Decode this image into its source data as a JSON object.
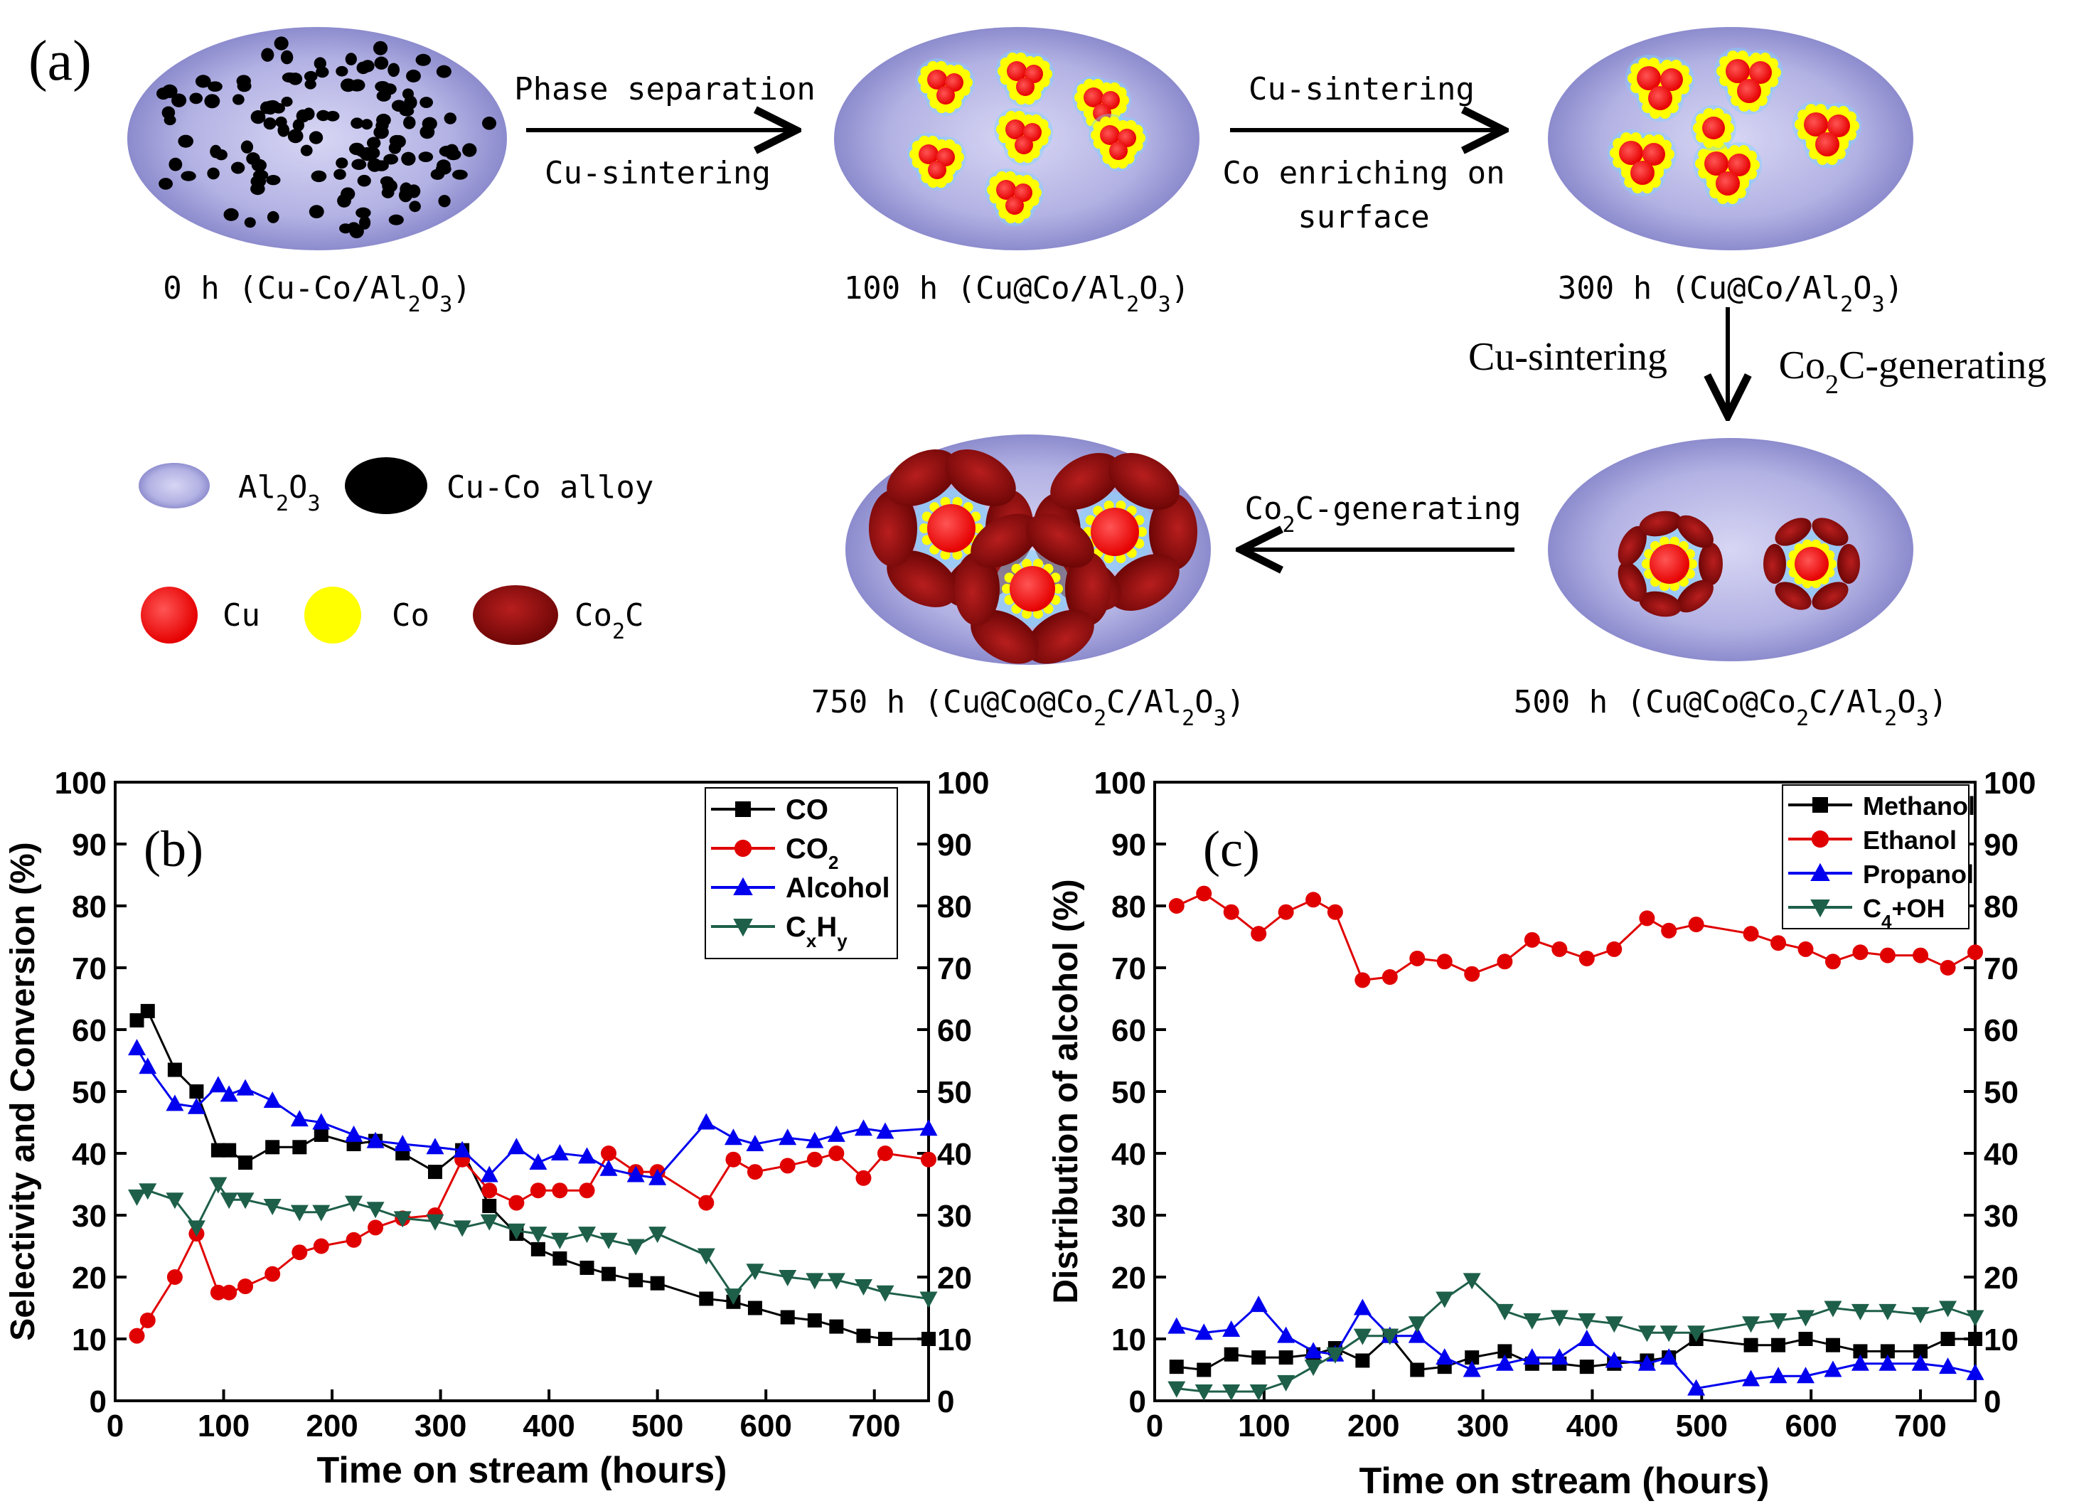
{
  "panel_a": {
    "label": "(a)",
    "stages": [
      {
        "key": "s0",
        "caption_pre": "0 h (Cu-Co/Al",
        "caption_post": "O",
        "caption_end": ")",
        "sub1": "2",
        "sub2": "3"
      },
      {
        "key": "s100",
        "caption_pre": "100 h (Cu@Co/Al",
        "caption_post": "O",
        "caption_end": ")",
        "sub1": "2",
        "sub2": "3"
      },
      {
        "key": "s300",
        "caption_pre": "300 h (Cu@Co/Al",
        "caption_post": "O",
        "caption_end": ")",
        "sub1": "2",
        "sub2": "3"
      },
      {
        "key": "s500",
        "caption_pre": "500 h (Cu@Co@Co",
        "caption_mid": "C/Al",
        "caption_post": "O",
        "caption_end": ")",
        "sub0": "2",
        "sub1": "2",
        "sub2": "3"
      },
      {
        "key": "s750",
        "caption_pre": "750 h (Cu@Co@Co",
        "caption_mid": "C/Al",
        "caption_post": "O",
        "caption_end": ")",
        "sub0": "2",
        "sub1": "2",
        "sub2": "3"
      }
    ],
    "arrows": {
      "a1_top": "Phase separation",
      "a1_bottom": "Cu-sintering",
      "a2_top": "Cu-sintering",
      "a2_bottom1": "Co enriching on",
      "a2_bottom2": "surface",
      "a3_left": "Cu-sintering",
      "a3_right_pre": "Co",
      "a3_right_sub": "2",
      "a3_right_post": "C-generating",
      "a4_pre": "Co",
      "a4_sub": "2",
      "a4_post": "C-generating"
    },
    "legend": {
      "al2o3_pre": "Al",
      "al2o3_sub1": "2",
      "al2o3_mid": "O",
      "al2o3_sub2": "3",
      "alloy": "Cu-Co alloy",
      "cu": "Cu",
      "co": "Co",
      "co2c_pre": "Co",
      "co2c_sub": "2",
      "co2c_post": "C"
    },
    "colors": {
      "support": "#a9a8dc",
      "alloy": "#000000",
      "cu": "#ff0000",
      "co": "#ffff00",
      "co2c": "#8b0d0d"
    }
  },
  "chart_data": [
    {
      "panel": "(b)",
      "type": "line",
      "xlabel": "Time on stream (hours)",
      "ylabel": "Selectivity and Conversion (%)",
      "xlim": [
        0,
        750
      ],
      "ylim": [
        0,
        100
      ],
      "xticks": [
        0,
        100,
        200,
        300,
        400,
        500,
        600,
        700
      ],
      "yticks": [
        0,
        10,
        20,
        30,
        40,
        50,
        60,
        70,
        80,
        90,
        100
      ],
      "legend_loc": "top-right",
      "series": [
        {
          "name": "CO",
          "label": "CO",
          "sub": "",
          "color": "#000000",
          "marker": "square",
          "x": [
            20,
            30,
            55,
            75,
            95,
            105,
            120,
            145,
            170,
            190,
            220,
            240,
            265,
            295,
            320,
            345,
            370,
            390,
            410,
            435,
            455,
            480,
            500,
            545,
            570,
            590,
            620,
            645,
            665,
            690,
            710,
            750
          ],
          "y": [
            61.5,
            63,
            53.5,
            50,
            40.5,
            40.5,
            38.5,
            41,
            41,
            43,
            41.5,
            42,
            40,
            37,
            40.5,
            31.5,
            27,
            24.5,
            23,
            21.5,
            20.5,
            19.5,
            19,
            16.5,
            16,
            15,
            13.5,
            13,
            12,
            10.5,
            10,
            10
          ]
        },
        {
          "name": "CO2",
          "label": "CO",
          "sub": "2",
          "color": "#e00000",
          "marker": "circle",
          "x": [
            20,
            30,
            55,
            75,
            95,
            105,
            120,
            145,
            170,
            190,
            220,
            240,
            265,
            295,
            320,
            345,
            370,
            390,
            410,
            435,
            455,
            480,
            500,
            545,
            570,
            590,
            620,
            645,
            665,
            690,
            710,
            750
          ],
          "y": [
            10.5,
            13,
            20,
            27,
            17.5,
            17.5,
            18.5,
            20.5,
            24,
            25,
            26,
            28,
            29.5,
            30,
            39,
            34,
            32,
            34,
            34,
            34,
            40,
            37,
            37,
            32,
            39,
            37,
            38,
            39,
            40,
            36,
            40,
            39
          ]
        },
        {
          "name": "Alcohol",
          "label": "Alcohol",
          "sub": "",
          "color": "#0000ee",
          "marker": "triangle-up",
          "x": [
            20,
            30,
            55,
            75,
            95,
            105,
            120,
            145,
            170,
            190,
            220,
            240,
            265,
            295,
            320,
            345,
            370,
            390,
            410,
            435,
            455,
            480,
            500,
            545,
            570,
            590,
            620,
            645,
            665,
            690,
            710,
            750
          ],
          "y": [
            57,
            54,
            48,
            47.5,
            51,
            49.5,
            50.5,
            48.5,
            45.5,
            45,
            43,
            42,
            41.5,
            41,
            40.5,
            36.5,
            41,
            38.5,
            40,
            39.5,
            37.5,
            36.5,
            36,
            45,
            42.5,
            41.5,
            42.5,
            42,
            43,
            44,
            43.5,
            44
          ]
        },
        {
          "name": "CxHy",
          "label": "C",
          "sub": "x",
          "label2": "H",
          "sub2": "y",
          "color": "#1e5f4a",
          "marker": "triangle-down",
          "x": [
            20,
            30,
            55,
            75,
            95,
            105,
            120,
            145,
            170,
            190,
            220,
            240,
            265,
            295,
            320,
            345,
            370,
            390,
            410,
            435,
            455,
            480,
            500,
            545,
            570,
            590,
            620,
            645,
            665,
            690,
            710,
            750
          ],
          "y": [
            33,
            34,
            32.5,
            28,
            35,
            32.5,
            32.5,
            31.5,
            30.5,
            30.5,
            32,
            31,
            29.5,
            29,
            28,
            29,
            27.5,
            27,
            26,
            27,
            26,
            25,
            27,
            23.5,
            17,
            21,
            20,
            19.5,
            19.5,
            18.5,
            17.5,
            16.5
          ]
        }
      ]
    },
    {
      "panel": "(c)",
      "type": "line",
      "xlabel": "Time on stream (hours)",
      "ylabel": "Distribution of alcohol (%)",
      "xlim": [
        0,
        750
      ],
      "ylim": [
        0,
        100
      ],
      "xticks": [
        0,
        100,
        200,
        300,
        400,
        500,
        600,
        700
      ],
      "yticks": [
        0,
        10,
        20,
        30,
        40,
        50,
        60,
        70,
        80,
        90,
        100
      ],
      "legend_loc": "top-right",
      "series": [
        {
          "name": "Methanol",
          "label": "Methanol",
          "sub": "",
          "color": "#000000",
          "marker": "square",
          "x": [
            20,
            45,
            70,
            95,
            120,
            145,
            165,
            190,
            215,
            240,
            265,
            290,
            320,
            345,
            370,
            395,
            420,
            450,
            470,
            495,
            545,
            570,
            595,
            620,
            645,
            670,
            700,
            725,
            750
          ],
          "y": [
            5.5,
            5,
            7.5,
            7,
            7,
            7.5,
            8.5,
            6.5,
            10.5,
            5,
            5.5,
            7,
            8,
            6,
            6,
            5.5,
            6,
            6.5,
            7,
            10,
            9,
            9,
            10,
            9,
            8,
            8,
            8,
            10,
            10
          ]
        },
        {
          "name": "Ethanol",
          "label": "Ethanol",
          "sub": "",
          "color": "#e00000",
          "marker": "circle",
          "x": [
            20,
            45,
            70,
            95,
            120,
            145,
            165,
            190,
            215,
            240,
            265,
            290,
            320,
            345,
            370,
            395,
            420,
            450,
            470,
            495,
            545,
            570,
            595,
            620,
            645,
            670,
            700,
            725,
            750
          ],
          "y": [
            80,
            82,
            79,
            75.5,
            79,
            81,
            79,
            68,
            68.5,
            71.5,
            71,
            69,
            71,
            74.5,
            73,
            71.5,
            73,
            78,
            76,
            77,
            75.5,
            74,
            73,
            71,
            72.5,
            72,
            72,
            70,
            72.5
          ]
        },
        {
          "name": "Propanol",
          "label": "Propanol",
          "sub": "",
          "color": "#0000ee",
          "marker": "triangle-up",
          "x": [
            20,
            45,
            70,
            95,
            120,
            145,
            165,
            190,
            215,
            240,
            265,
            290,
            320,
            345,
            370,
            395,
            420,
            450,
            470,
            495,
            545,
            570,
            595,
            620,
            645,
            670,
            700,
            725,
            750
          ],
          "y": [
            12,
            11,
            11.5,
            15.5,
            10.5,
            8,
            7.5,
            15,
            10.5,
            10.5,
            7,
            5,
            6,
            7,
            7,
            10,
            6.5,
            6,
            7,
            2,
            3.5,
            4,
            4,
            5,
            6,
            6,
            6,
            5.5,
            4.5
          ]
        },
        {
          "name": "C4+OH",
          "label": "C",
          "sub": "4",
          "label2": "+OH",
          "sub2": "",
          "color": "#1e5f4a",
          "marker": "triangle-down",
          "x": [
            20,
            45,
            70,
            95,
            120,
            145,
            165,
            190,
            215,
            240,
            265,
            290,
            320,
            345,
            370,
            395,
            420,
            450,
            470,
            495,
            545,
            570,
            595,
            620,
            645,
            670,
            700,
            725,
            750
          ],
          "y": [
            2,
            1.5,
            1.5,
            1.5,
            3,
            5.5,
            7.5,
            10.5,
            10.5,
            12.5,
            16.5,
            19.5,
            14.5,
            13,
            13.5,
            13,
            12.5,
            11,
            11,
            11,
            12.5,
            13,
            13.5,
            15,
            14.5,
            14.5,
            14,
            15,
            13.5
          ]
        }
      ]
    }
  ]
}
